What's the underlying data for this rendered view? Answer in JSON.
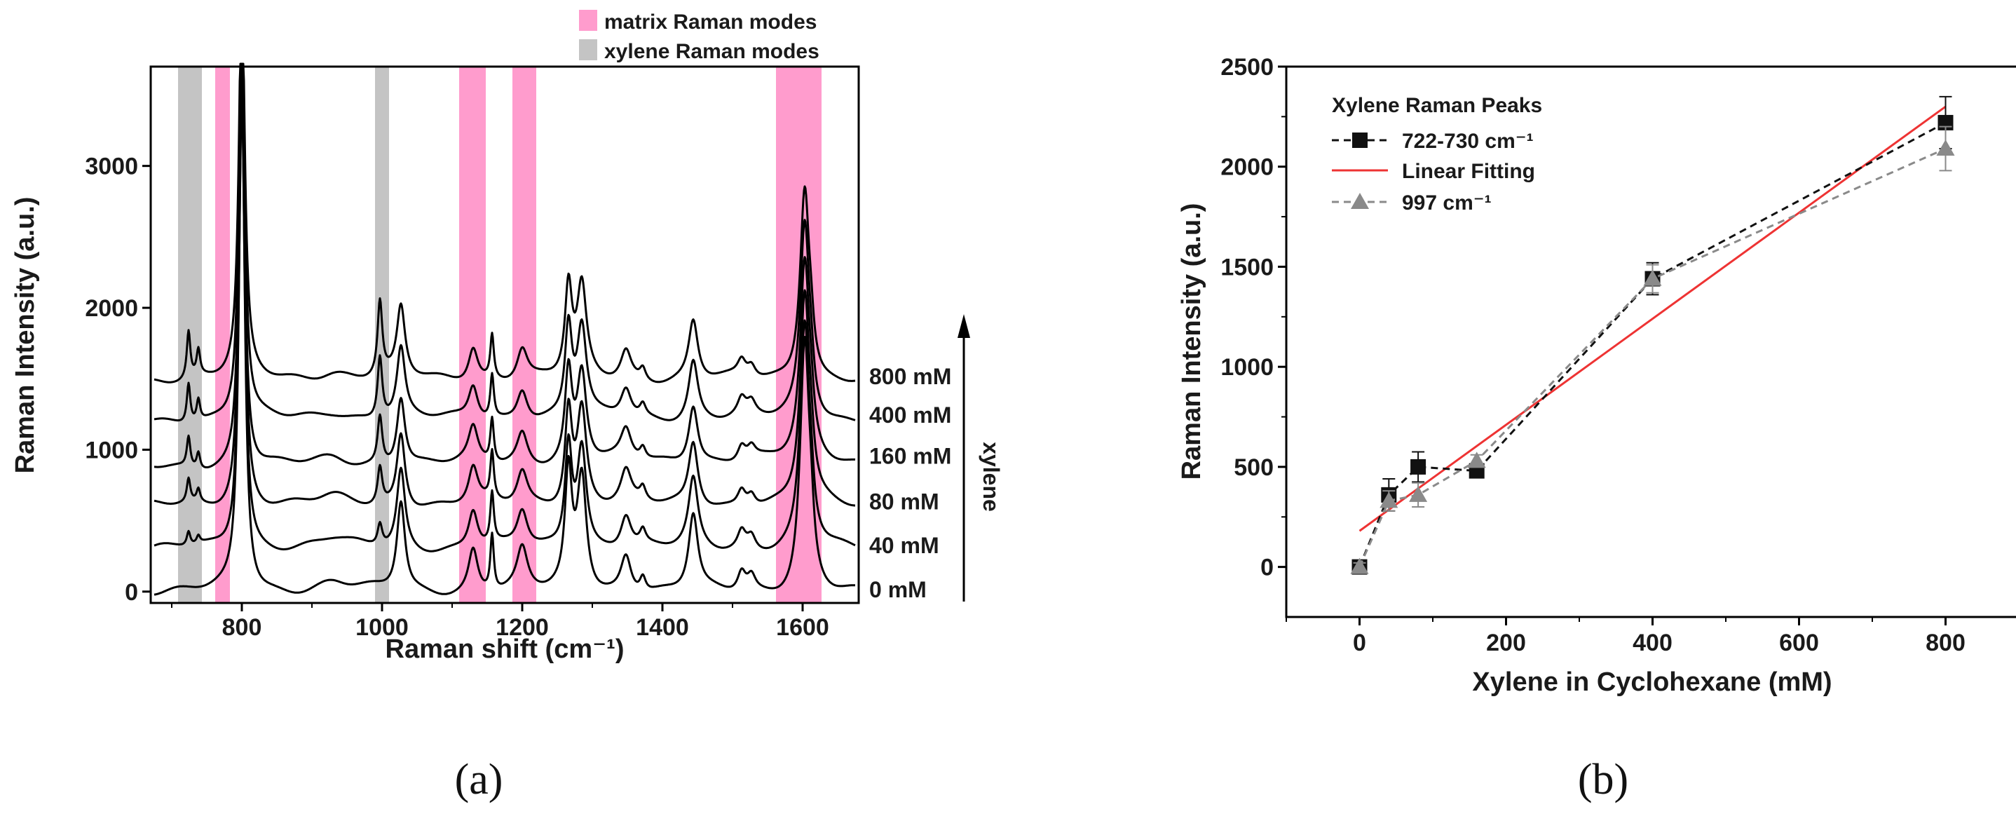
{
  "captions": {
    "a": "(a)",
    "b": "(b)"
  },
  "colors": {
    "matrix_band": "#ff9ccd",
    "xylene_band": "#c4c4c4",
    "fit_line": "#ee3333",
    "series1": "#111111",
    "series2": "#8a8a8a",
    "spectra": "#000000"
  },
  "chart_data": [
    {
      "id": "a",
      "type": "line",
      "title": "",
      "xlabel": "Raman shift (cm⁻¹)",
      "ylabel": "Raman Intensity (a.u.)",
      "xlim": [
        670,
        1680
      ],
      "ylim": [
        -80,
        3700
      ],
      "xticks": [
        800,
        1000,
        1200,
        1400,
        1600
      ],
      "yticks": [
        0,
        1000,
        2000,
        3000
      ],
      "xtick_labels": [
        "800",
        "1000",
        "1200",
        "1400",
        "1600"
      ],
      "ytick_labels": [
        "0",
        "1000",
        "2000",
        "3000"
      ],
      "legend": [
        {
          "label": "matrix Raman modes",
          "kind": "matrix"
        },
        {
          "label": "xylene Raman modes",
          "kind": "xylene"
        }
      ],
      "bands": [
        {
          "kind": "xylene",
          "x0": 709,
          "x1": 743
        },
        {
          "kind": "matrix",
          "x0": 762,
          "x1": 783
        },
        {
          "kind": "xylene",
          "x0": 990,
          "x1": 1010
        },
        {
          "kind": "matrix",
          "x0": 1110,
          "x1": 1148
        },
        {
          "kind": "matrix",
          "x0": 1186,
          "x1": 1220
        },
        {
          "kind": "matrix",
          "x0": 1562,
          "x1": 1627
        }
      ],
      "axis_annotation": "xylene",
      "peaks": [
        {
          "x": 800,
          "w": 5,
          "matrix": 4000,
          "xylene": 0
        },
        {
          "x": 724,
          "w": 3,
          "matrix": 0,
          "xylene": 330
        },
        {
          "x": 738,
          "w": 3,
          "matrix": 0,
          "xylene": 180
        },
        {
          "x": 997,
          "w": 4,
          "matrix": 0,
          "xylene": 520
        },
        {
          "x": 1027,
          "w": 7,
          "matrix": 700,
          "xylene": 0
        },
        {
          "x": 1130,
          "w": 8,
          "matrix": 340,
          "xylene": 0
        },
        {
          "x": 1157,
          "w": 3,
          "matrix": 440,
          "xylene": 0
        },
        {
          "x": 1200,
          "w": 9,
          "matrix": 320,
          "xylene": 0
        },
        {
          "x": 1266,
          "w": 6,
          "matrix": 900,
          "xylene": 0
        },
        {
          "x": 1285,
          "w": 8,
          "matrix": 900,
          "xylene": 0
        },
        {
          "x": 1348,
          "w": 9,
          "matrix": 300,
          "xylene": 0
        },
        {
          "x": 1372,
          "w": 5,
          "matrix": 120,
          "xylene": 0
        },
        {
          "x": 1444,
          "w": 8,
          "matrix": 600,
          "xylene": 0
        },
        {
          "x": 1513,
          "w": 7,
          "matrix": 160,
          "xylene": 0
        },
        {
          "x": 1527,
          "w": 7,
          "matrix": 120,
          "xylene": 0
        },
        {
          "x": 1603,
          "w": 8,
          "matrix": 1950,
          "xylene": 0
        },
        {
          "x": 1612,
          "w": 5,
          "matrix": 260,
          "xylene": 0
        },
        {
          "x": 930,
          "w": 30,
          "matrix": 80,
          "xylene": 0
        }
      ],
      "series": [
        {
          "name": "0 mM",
          "label": "0 mM",
          "offset": 0,
          "scale": 0.9,
          "xylene_scale": 0.0,
          "baseline_end": -20
        },
        {
          "name": "40 mM",
          "label": "40 mM",
          "offset": 300,
          "scale": 0.8,
          "xylene_scale": 0.3,
          "baseline_end": 290
        },
        {
          "name": "80 mM",
          "label": "80 mM",
          "offset": 600,
          "scale": 0.75,
          "xylene_scale": 0.5,
          "baseline_end": 600
        },
        {
          "name": "160 mM",
          "label": "160 mM",
          "offset": 870,
          "scale": 0.7,
          "xylene_scale": 0.65,
          "baseline_end": 920
        },
        {
          "name": "400 mM",
          "label": "400 mM",
          "offset": 1210,
          "scale": 0.7,
          "xylene_scale": 0.85,
          "baseline_end": 1210
        },
        {
          "name": "800 mM",
          "label": "800 mM",
          "offset": 1500,
          "scale": 0.7,
          "xylene_scale": 1.0,
          "baseline_end": 1480
        }
      ]
    },
    {
      "id": "b",
      "type": "scatter",
      "title": "",
      "xlabel": "Xylene in Cyclohexane (mM)",
      "ylabel": "Raman Intensity (a.u.)",
      "xlim": [
        -100,
        900
      ],
      "ylim": [
        -250,
        2500
      ],
      "xticks": [
        0,
        200,
        400,
        600,
        800
      ],
      "yticks": [
        0,
        500,
        1000,
        1500,
        2000,
        2500
      ],
      "xtick_labels": [
        "0",
        "200",
        "400",
        "600",
        "800"
      ],
      "ytick_labels": [
        "0",
        "500",
        "1000",
        "1500",
        "2000",
        "2500"
      ],
      "legend_title": "Xylene Raman Peaks",
      "legend": [
        {
          "label": "722-730 cm⁻¹",
          "kind": "square"
        },
        {
          "label": "Linear Fitting",
          "kind": "fit"
        },
        {
          "label": "997 cm⁻¹",
          "kind": "triangle"
        }
      ],
      "series": [
        {
          "name": "722-730 cm⁻¹",
          "marker": "square",
          "x": [
            0,
            40,
            80,
            160,
            400,
            800
          ],
          "y": [
            0,
            360,
            500,
            480,
            1440,
            2220
          ],
          "err": [
            20,
            80,
            75,
            30,
            80,
            130
          ]
        },
        {
          "name": "997 cm⁻¹",
          "marker": "triangle",
          "x": [
            0,
            40,
            80,
            160,
            400,
            800
          ],
          "y": [
            0,
            330,
            360,
            530,
            1440,
            2090
          ],
          "err": [
            20,
            50,
            60,
            30,
            70,
            110
          ]
        }
      ],
      "fit": {
        "name": "Linear Fitting",
        "x": [
          0,
          800
        ],
        "y": [
          180,
          2300
        ]
      }
    }
  ]
}
